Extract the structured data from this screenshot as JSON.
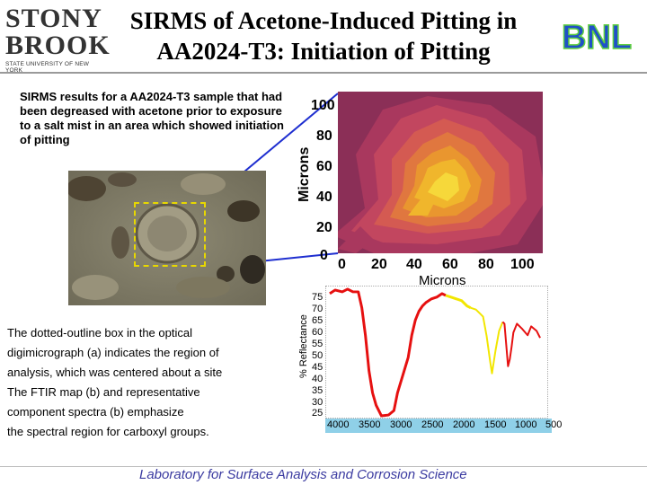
{
  "title_line1": "SIRMS of Acetone-Induced Pitting in",
  "title_line2": "AA2024-T3: Initiation of Pitting",
  "logo_left": {
    "line1": "STONY",
    "line2": "BROOK",
    "line3": "STATE UNIVERSITY OF NEW YORK"
  },
  "logo_right": {
    "text": "BNL"
  },
  "description_top": "SIRMS results for a AA2024-T3 sample that had been degreased with acetone prior to exposure to a salt mist in an area which showed initiation of pitting",
  "description_bottom": [
    "The dotted-outline box in the optical",
    "digimicrograph (a) indicates the region of",
    "analysis, which was centered about a site",
    "The FTIR map (b) and representative",
    "component spectra  (b)  emphasize",
    "the spectral region for carboxyl groups."
  ],
  "ftir_map": {
    "y_label": "Microns",
    "x_label": "Microns",
    "y_ticks": [
      "100",
      "80",
      "60",
      "40",
      "20",
      "0"
    ],
    "x_ticks": [
      "0",
      "20",
      "40",
      "60",
      "80",
      "100"
    ],
    "colors": [
      "#8b2f57",
      "#a9385e",
      "#c2465f",
      "#d45a52",
      "#e0773f",
      "#e9962f",
      "#f0b62c",
      "#f6d83a"
    ]
  },
  "spectrum": {
    "y_label": "% Reflectance",
    "y_ticks": [
      "75",
      "70",
      "65",
      "60",
      "55",
      "50",
      "45",
      "40",
      "35",
      "30",
      "25"
    ],
    "x_ticks": [
      "4000",
      "3500",
      "3000",
      "2500",
      "2000",
      "1500",
      "1000",
      "500"
    ],
    "colors": {
      "red": "#e61010",
      "yellow": "#f2e600",
      "axis_band": "#8fd0e8"
    }
  },
  "footer": "Laboratory for Surface Analysis and Corrosion Science"
}
